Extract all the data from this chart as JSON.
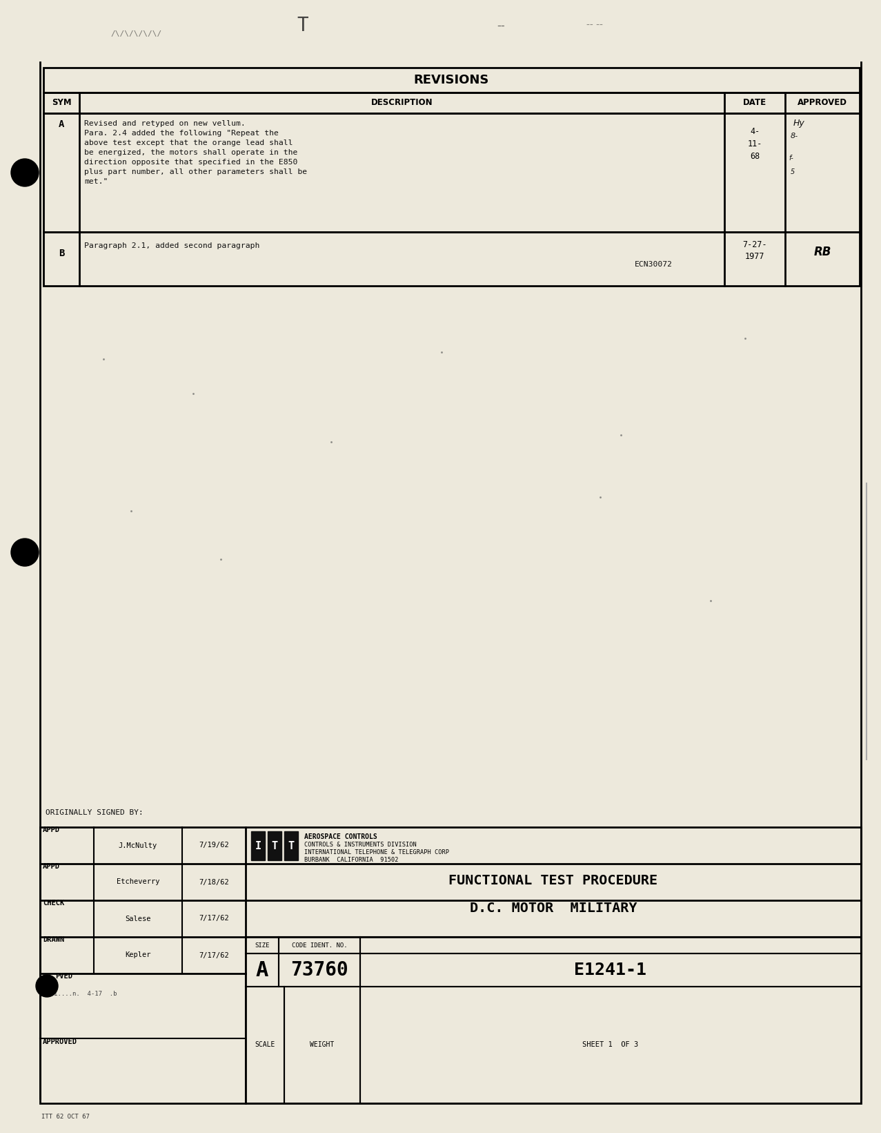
{
  "bg_color": "#e8e4d8",
  "page_bg": "#ede9dc",
  "title": "REVISIONS",
  "rev_A_sym": "A",
  "rev_A_desc_line1": "Revised and retyped on new vellum.",
  "rev_A_desc_line2": "Para. 2.4 added the following \"Repeat the",
  "rev_A_desc_line3": "above test except that the orange lead shall",
  "rev_A_desc_line4": "be energized, the motors shall operate in the",
  "rev_A_desc_line5": "direction opposite that specified in the E850",
  "rev_A_desc_line6": "plus part number, all other parameters shall be",
  "rev_A_desc_line7": "met.\"",
  "rev_A_date": "4-\n11-\n68",
  "rev_B_sym": "B",
  "rev_B_desc": "Paragraph 2.1, added second paragraph",
  "rev_B_ecn": "ECN30072",
  "rev_B_date": "7-27-\n1977",
  "rev_B_approved": "RB",
  "appd_label": "APPD",
  "appd1_name": "J.McNulty",
  "appd1_date": "7/19/62",
  "appd2_name": "Etcheverry",
  "appd2_date": "7/18/62",
  "check_label": "CHECK",
  "check_name": "Salese",
  "check_date": "7/17/62",
  "drawn_label": "DRAWN",
  "drawn_name": "Kepler",
  "drawn_date": "7/17/62",
  "approved_label": "APPROVED",
  "itt_line1": "AEROSPACE CONTROLS",
  "itt_line2": "CONTROLS & INSTRUMENTS DIVISION",
  "itt_line3": "INTERNATIONAL TELEPHONE & TELEGRAPH CORP",
  "itt_line4": "BURBANK  CALIFORNIA  91502",
  "doc_title1": "FUNCTIONAL TEST PROCEDURE",
  "doc_title2": "D.C. MOTOR  MILITARY",
  "size_label": "SIZE",
  "code_label": "CODE IDENT. NO.",
  "size_val": "A",
  "code_val": "73760",
  "part_num": "E1241-1",
  "scale_label": "SCALE",
  "weight_label": "WEIGHT",
  "sheet_label": "SHEET 1  OF 3",
  "bottom_text": "ITT 62 OCT 67",
  "originally_signed": "ORIGINALLY SIGNED BY:"
}
